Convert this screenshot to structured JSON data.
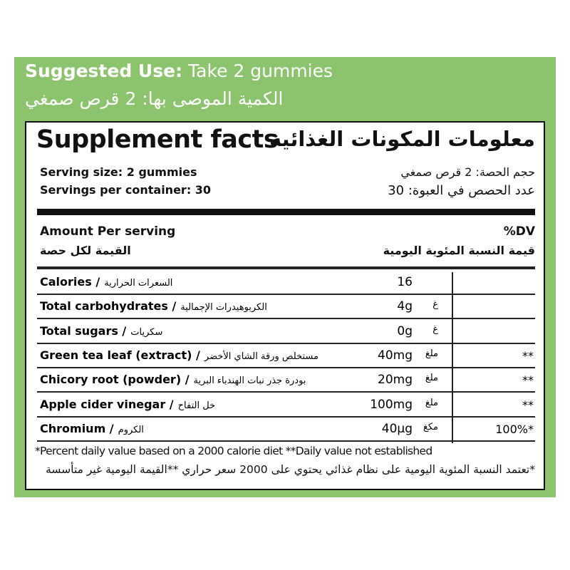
{
  "suggested_use": {
    "label_en": "Suggested Use:",
    "value_en": "Take 2 gummies",
    "text_ar": "الكمية الموصى بها:  2 قرص صمغي"
  },
  "header": {
    "title_en": "Supplement facts",
    "title_ar": "معلومات المكونات الغذائية"
  },
  "serving": {
    "size_en": "Serving size: 2  gummies",
    "per_container_en": "Servings per container: 30",
    "size_ar": "حجم الحصة: 2 قرص صمغي",
    "per_container_ar": "عدد الحصص في العبوة: 30"
  },
  "columns": {
    "amount_en": "Amount Per serving",
    "amount_ar": "القيمة لكل حصة",
    "dv_en": "%DV",
    "dv_ar": "قيمة النسبة المئوية اليومية"
  },
  "rows": [
    {
      "name_en": "Calories /",
      "name_ar": "السعرات الحرارية",
      "value": "16",
      "unit_ar": "",
      "dv": ""
    },
    {
      "name_en": "Total carbohydrates /",
      "name_ar": "الكربوهيدرات الإجمالية",
      "value": "4g",
      "unit_ar": "غ",
      "dv": ""
    },
    {
      "name_en": "Total sugars /",
      "name_ar": "سكريات",
      "value": "0g",
      "unit_ar": "غ",
      "dv": ""
    },
    {
      "name_en": "Green tea leaf (extract) /",
      "name_ar": "مستخلص ورقة الشاي الأخضر",
      "value": "40mg",
      "unit_ar": "ملغ",
      "dv": "**"
    },
    {
      "name_en": "Chicory root (powder) /",
      "name_ar": "بودرة جذر نبات الهندباء البرية",
      "value": "20mg",
      "unit_ar": "ملغ",
      "dv": "**"
    },
    {
      "name_en": "Apple cider vinegar /",
      "name_ar": "خل التفاح",
      "value": "100mg",
      "unit_ar": "ملغ",
      "dv": "**"
    },
    {
      "name_en": "Chromium /",
      "name_ar": "الكروم",
      "value": "40µg",
      "unit_ar": "مكغ",
      "dv": "100%*"
    }
  ],
  "footnote_en": "*Percent daily value based on a 2000 calorie diet  **Daily value not established",
  "footnote_ar": "*تعتمد النسبة المئوية اليومية على نظام غذائي يحتوي على 2000 سعر حراري **القيمة اليومية غير متأسسة",
  "colors": {
    "panel": "#8cc46e",
    "ink": "#111111"
  }
}
